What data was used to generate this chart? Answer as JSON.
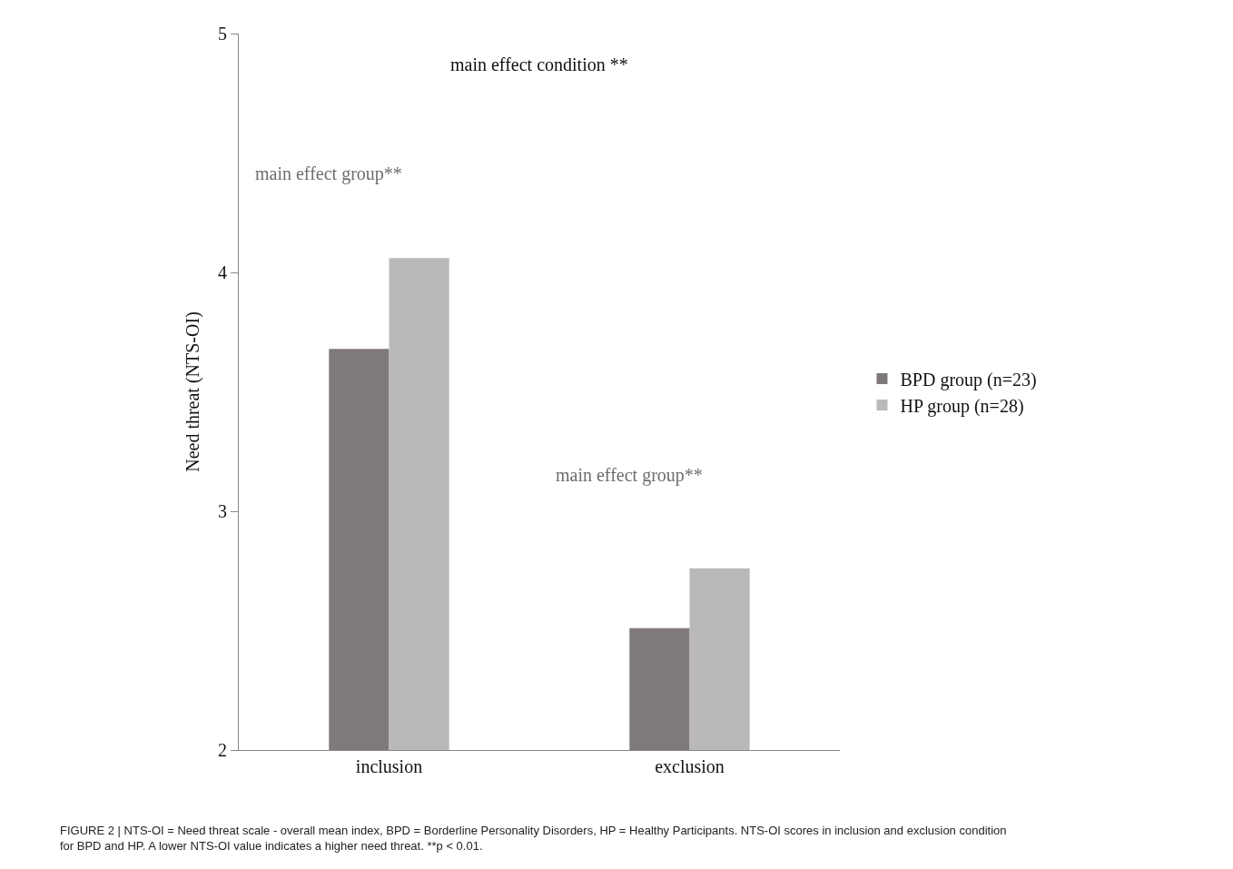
{
  "chart_data": {
    "type": "bar",
    "categories": [
      "inclusion",
      "exclusion"
    ],
    "ylabel": "Need threat (NTS-OI)",
    "series": [
      {
        "name": "BPD group (n=23)",
        "color": "#7f797a",
        "values": [
          3.68,
          2.51
        ]
      },
      {
        "name": "HP group (n=28)",
        "color": "#bab8b9",
        "values": [
          4.06,
          2.76
        ]
      }
    ],
    "ylim": [
      2,
      5
    ],
    "yticks": [
      2,
      3,
      4,
      5
    ],
    "legend": "right",
    "annotations": [
      "main effect condition **",
      "main effect group**",
      "main effect group**",
      "FIGURE 2 | NTS-OI = Need threat scale - overall mean index, BPD = Borderline Personality Disorders, HP = Healthy Participants. NTS-OI scores in inclusion and exclusion condition for BPD and HP. A lower NTS-OI value indicates a higher need threat. **p < 0.01."
    ]
  }
}
